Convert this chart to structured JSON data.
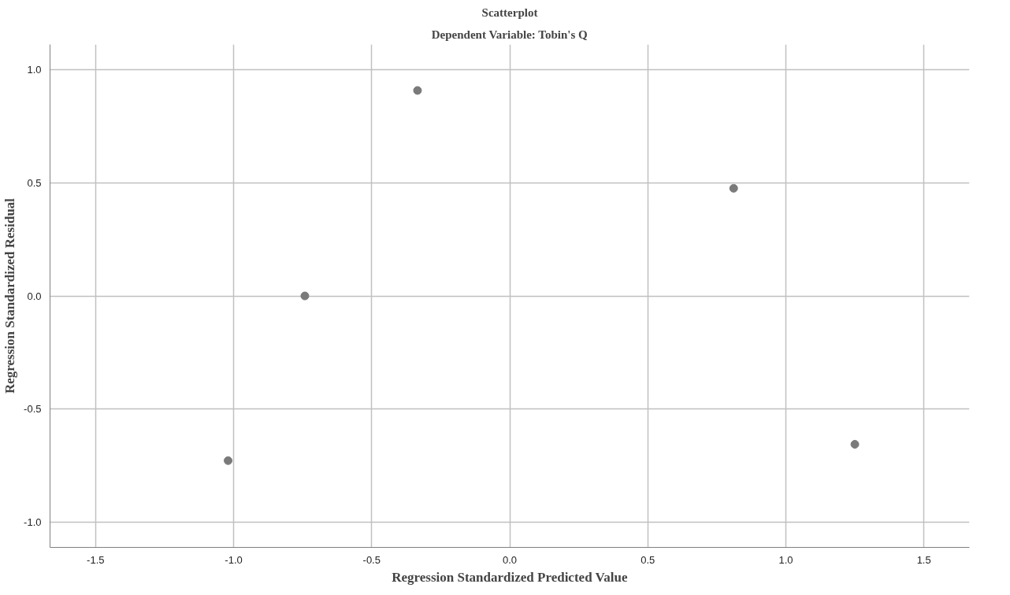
{
  "chart_data": {
    "type": "scatter",
    "title": "Scatterplot",
    "subtitle": "Dependent Variable: Tobin's Q",
    "xlabel": "Regression Standardized Predicted Value",
    "ylabel": "Regression Standardized Residual",
    "series": [
      {
        "color": "#7a7a7a",
        "x": [
          -1.02,
          -0.742,
          -0.334,
          0.811,
          1.25
        ],
        "values": [
          -0.727,
          0.0,
          0.907,
          0.475,
          -0.655
        ]
      }
    ],
    "xlim": [
      -1.665,
      1.665
    ],
    "ylim": [
      -1.11,
      1.11
    ],
    "xticks": [
      -1.5,
      {
        "value": -1,
        "label": "-1.0"
      },
      -0.5,
      {
        "value": 0,
        "label": "0.0"
      },
      0.5,
      {
        "value": 1,
        "label": "1.0"
      },
      1.5
    ],
    "yticks": [
      {
        "value": -1,
        "label": "-1.0"
      },
      -0.5,
      {
        "value": 0,
        "label": "0.0"
      },
      0.5,
      {
        "value": 1,
        "label": "1.0"
      }
    ],
    "grid": true,
    "marker": "circle"
  }
}
